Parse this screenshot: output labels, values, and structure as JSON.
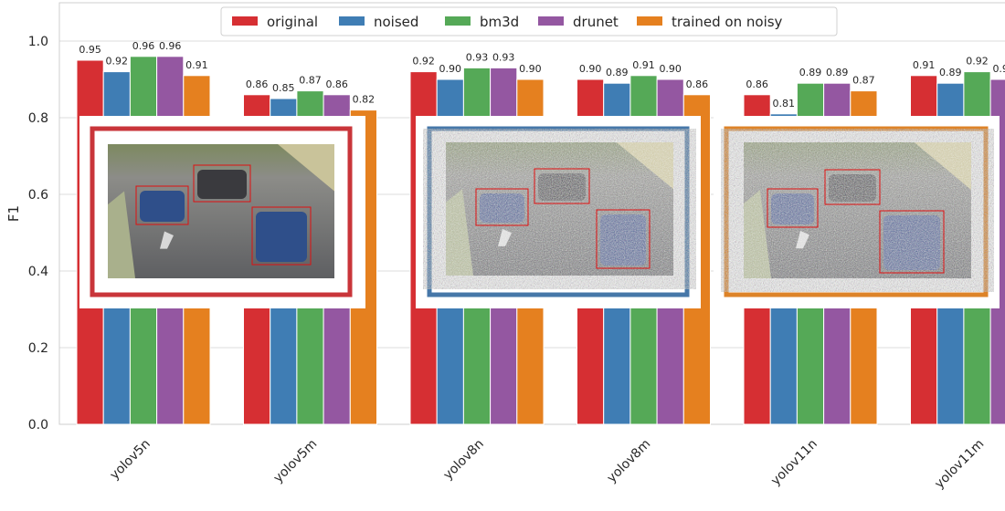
{
  "chart_data": {
    "type": "bar",
    "title": "",
    "xlabel": "",
    "ylabel": "F1",
    "ylim": [
      0,
      1.1
    ],
    "yticks": [
      "0.0",
      "0.2",
      "0.4",
      "0.6",
      "0.8",
      "1.0"
    ],
    "grid": true,
    "legend_position": "top-center",
    "categories": [
      "yolov5n",
      "yolov5m",
      "yolov8n",
      "yolov8m",
      "yolov11n",
      "yolov11m"
    ],
    "series": [
      {
        "name": "original",
        "color": "#d62f33",
        "values": [
          0.95,
          0.86,
          0.92,
          0.9,
          0.86,
          0.91
        ]
      },
      {
        "name": "noised",
        "color": "#3f7db4",
        "values": [
          0.92,
          0.85,
          0.9,
          0.89,
          0.81,
          0.89
        ]
      },
      {
        "name": "bm3d",
        "color": "#55a957",
        "values": [
          0.96,
          0.87,
          0.93,
          0.91,
          0.89,
          0.92
        ]
      },
      {
        "name": "drunet",
        "color": "#9457a1",
        "values": [
          0.96,
          0.86,
          0.93,
          0.9,
          0.89,
          0.9
        ]
      },
      {
        "name": "trained on noisy",
        "color": "#e5801f",
        "values": [
          0.91,
          0.82,
          0.9,
          0.86,
          0.87,
          null
        ]
      }
    ],
    "insets": [
      {
        "label": "original",
        "border_color": "#c9353a"
      },
      {
        "label": "noised",
        "border_color": "#4677a8"
      },
      {
        "label": "trained on noisy",
        "border_color": "#dd8328"
      }
    ]
  }
}
